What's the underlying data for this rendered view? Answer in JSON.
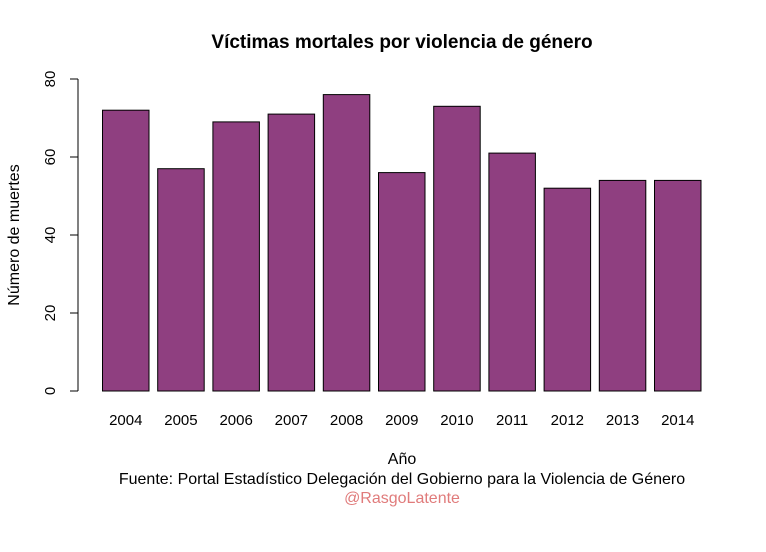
{
  "chart_data": {
    "type": "bar",
    "title": "Víctimas mortales por violencia de género",
    "xlabel": "Año",
    "ylabel": "Número de muertes",
    "caption": "Fuente: Portal Estadístico Delegación del Gobierno para la Violencia de Género",
    "credit": "@RasgoLatente",
    "categories": [
      "2004",
      "2005",
      "2006",
      "2007",
      "2008",
      "2009",
      "2010",
      "2011",
      "2012",
      "2013",
      "2014"
    ],
    "values": [
      72,
      57,
      69,
      71,
      76,
      56,
      73,
      61,
      52,
      54,
      54
    ],
    "ylim": [
      0,
      80
    ],
    "yticks": [
      "0",
      "20",
      "40",
      "60",
      "80"
    ],
    "grid": false,
    "legend": "none",
    "bar_color": "#8f3f80",
    "credit_color": "#e07b7b"
  }
}
